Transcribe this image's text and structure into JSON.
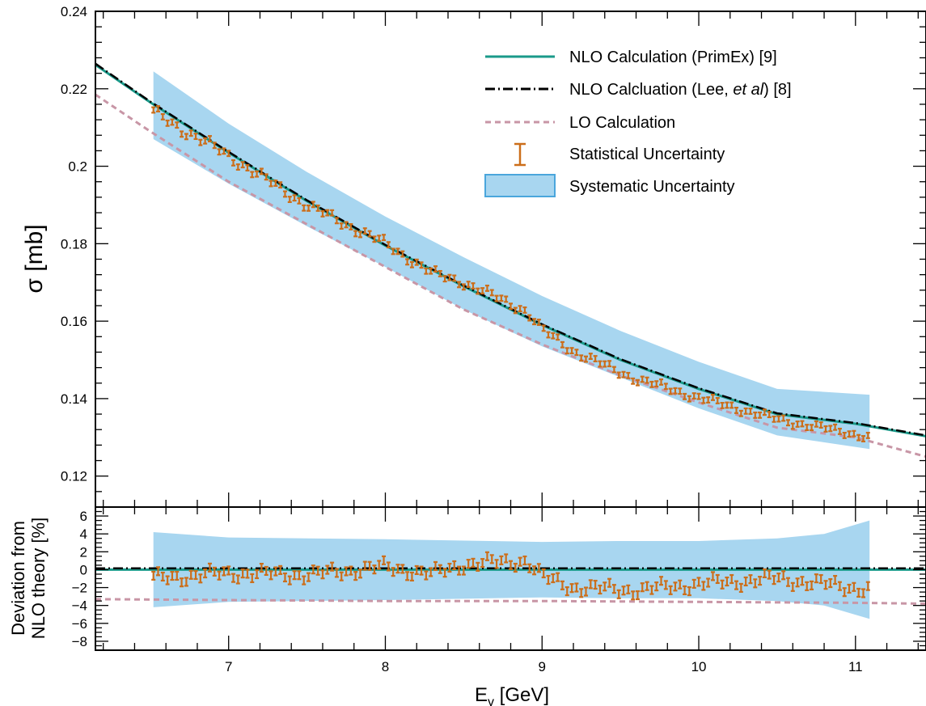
{
  "chart_data": [
    {
      "type": "line",
      "ylabel": "σ [mb]",
      "xlim": [
        6.15,
        11.45
      ],
      "ylim": [
        0.112,
        0.24
      ],
      "xticks": [
        7,
        8,
        9,
        10,
        11
      ],
      "yticks": [
        0.12,
        0.14,
        0.16,
        0.18,
        0.2,
        0.22,
        0.24
      ],
      "ytick_labels": [
        "0.12",
        "0.14",
        "0.16",
        "0.18",
        "0.2",
        "0.22",
        "0.24"
      ],
      "legend_position": "top-right",
      "legend": [
        {
          "label": "NLO Calculation (PrimEx) [9]",
          "kind": "line"
        },
        {
          "label_parts": [
            "NLO Calcluation (Lee, ",
            "et al",
            ") [8]"
          ],
          "kind": "dashdot"
        },
        {
          "label": "LO Calculation",
          "kind": "dashed"
        },
        {
          "label": "Statistical Uncertainty",
          "kind": "errorbar"
        },
        {
          "label": "Systematic Uncertainty",
          "kind": "band"
        }
      ],
      "series": [
        {
          "name": "NLO Calculation (PrimEx) [9]",
          "color": "#1a9a8a",
          "x": [
            6.15,
            6.5,
            7.0,
            7.5,
            8.0,
            8.5,
            9.0,
            9.5,
            10.0,
            10.5,
            11.0,
            11.45
          ],
          "y": [
            0.2262,
            0.2165,
            0.2035,
            0.191,
            0.1795,
            0.169,
            0.159,
            0.15,
            0.1425,
            0.136,
            0.1335,
            0.1303
          ]
        },
        {
          "name": "NLO Calcluation (Lee, et al) [8]",
          "color": "#000000",
          "x": [
            6.15,
            6.5,
            7.0,
            7.5,
            8.0,
            8.5,
            9.0,
            9.5,
            10.0,
            10.5,
            11.0,
            11.45
          ],
          "y": [
            0.2265,
            0.2167,
            0.2037,
            0.1912,
            0.1797,
            0.1692,
            0.1592,
            0.1502,
            0.1427,
            0.1362,
            0.1337,
            0.1305
          ]
        },
        {
          "name": "LO Calculation",
          "color": "#c896a6",
          "x": [
            6.15,
            6.5,
            7.0,
            7.5,
            8.0,
            8.5,
            9.0,
            9.5,
            10.0,
            10.5,
            11.0,
            11.45
          ],
          "y": [
            0.2185,
            0.209,
            0.196,
            0.185,
            0.174,
            0.163,
            0.154,
            0.146,
            0.139,
            0.1325,
            0.13,
            0.125
          ]
        },
        {
          "name": "Systematic Uncertainty",
          "color": "#a8d6f0",
          "x": [
            6.52,
            7.0,
            7.5,
            8.0,
            8.5,
            9.0,
            9.5,
            10.0,
            10.5,
            11.09
          ],
          "upper": [
            0.2245,
            0.211,
            0.1985,
            0.187,
            0.1765,
            0.1665,
            0.1575,
            0.1495,
            0.1425,
            0.141
          ],
          "lower": [
            0.207,
            0.1955,
            0.1845,
            0.174,
            0.163,
            0.1535,
            0.1455,
            0.1375,
            0.1305,
            0.127
          ]
        }
      ]
    },
    {
      "type": "line",
      "ylabel_lines": [
        "Deviation from",
        "NLO theory [%]"
      ],
      "xlabel_main": "E",
      "xlabel_sub": "γ",
      "xlabel_rest": " [GeV]",
      "xlim": [
        6.15,
        11.45
      ],
      "ylim": [
        -9,
        7
      ],
      "xticks": [
        7,
        8,
        9,
        10,
        11
      ],
      "xtick_labels": [
        "7",
        "8",
        "9",
        "10",
        "11"
      ],
      "yticks": [
        -8,
        -6,
        -4,
        -2,
        0,
        2,
        4,
        6
      ],
      "ytick_labels": [
        "−8",
        "−6",
        "−4",
        "−2",
        "0",
        "2",
        "4",
        "6"
      ],
      "series": [
        {
          "name": "NLO Calculation (PrimEx) [9]",
          "color": "#1a9a8a",
          "x": [
            6.15,
            11.45
          ],
          "y": [
            0,
            0
          ]
        },
        {
          "name": "NLO Calcluation (Lee, et al) [8]",
          "color": "#000000",
          "x": [
            6.15,
            11.45
          ],
          "y": [
            0.15,
            0.15
          ]
        },
        {
          "name": "LO Calculation",
          "color": "#c896a6",
          "x": [
            6.15,
            7.0,
            8.0,
            9.0,
            10.0,
            11.0,
            11.45
          ],
          "y": [
            -3.3,
            -3.4,
            -3.5,
            -3.5,
            -3.6,
            -3.7,
            -3.8
          ]
        },
        {
          "name": "Systematic Uncertainty",
          "color": "#a8d6f0",
          "x": [
            6.52,
            7.0,
            8.0,
            9.0,
            9.5,
            10.0,
            10.5,
            10.8,
            11.09
          ],
          "upper": [
            4.2,
            3.6,
            3.4,
            3.1,
            3.2,
            3.2,
            3.5,
            4.0,
            5.5
          ],
          "lower": [
            -4.2,
            -3.6,
            -3.4,
            -3.1,
            -3.2,
            -3.2,
            -3.5,
            -4.0,
            -5.5
          ]
        }
      ]
    }
  ]
}
